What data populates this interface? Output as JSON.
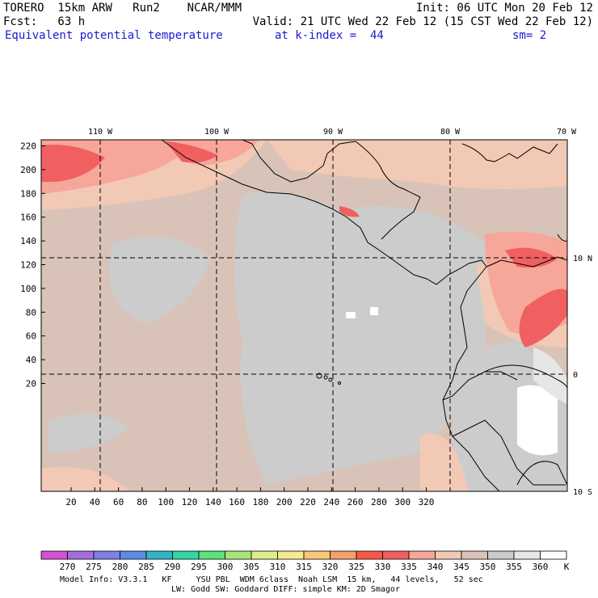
{
  "header": {
    "model": "TORERO  15km ARW   Run2    NCAR/MMM",
    "init": "Init: 06 UTC Mon 20 Feb 12",
    "fcst": "Fcst:   63 h",
    "valid": "Valid: 21 UTC Wed 22 Feb 12 (15 CST Wed 22 Feb 12)",
    "field": "Equivalent potential temperature",
    "level": "at k-index =  44",
    "smoothing": "sm= 2"
  },
  "map": {
    "top_labels": [
      "110 W",
      "100 W",
      "90 W",
      "80 W",
      "70 W"
    ],
    "right_labels": [
      "10 N",
      "0",
      "10 S"
    ],
    "y_ticks": [
      "220",
      "200",
      "180",
      "160",
      "140",
      "120",
      "100",
      "80",
      "60",
      "40",
      "20"
    ],
    "x_ticks": [
      "20",
      "40",
      "60",
      "80",
      "100",
      "120",
      "140",
      "160",
      "180",
      "200",
      "220",
      "240",
      "260",
      "280",
      "300",
      "320"
    ]
  },
  "colorbar": {
    "values": [
      "270",
      "275",
      "280",
      "285",
      "290",
      "295",
      "300",
      "305",
      "310",
      "315",
      "320",
      "325",
      "330",
      "335",
      "340",
      "345",
      "350",
      "355",
      "360"
    ],
    "unit": "K",
    "colors": [
      "#d452d2",
      "#a46fdc",
      "#7f7fe6",
      "#5a8ce6",
      "#2fb4c8",
      "#34d6a4",
      "#5ee07a",
      "#a8e67a",
      "#dcee8a",
      "#f6ea8e",
      "#f8c878",
      "#f7a06c",
      "#f65a46",
      "#f06060",
      "#f7a69a",
      "#f2c9b5",
      "#d9c3b8",
      "#cccccc",
      "#e6e6e6",
      "#ffffff"
    ]
  },
  "footer": {
    "line1": "Model Info: V3.3.1   KF     YSU PBL  WDM 6class  Noah LSM  15 km,   44 levels,   52 sec",
    "line2": "LW: Godd SW: Goddard DIFF: simple KM: 2D Smagor"
  }
}
